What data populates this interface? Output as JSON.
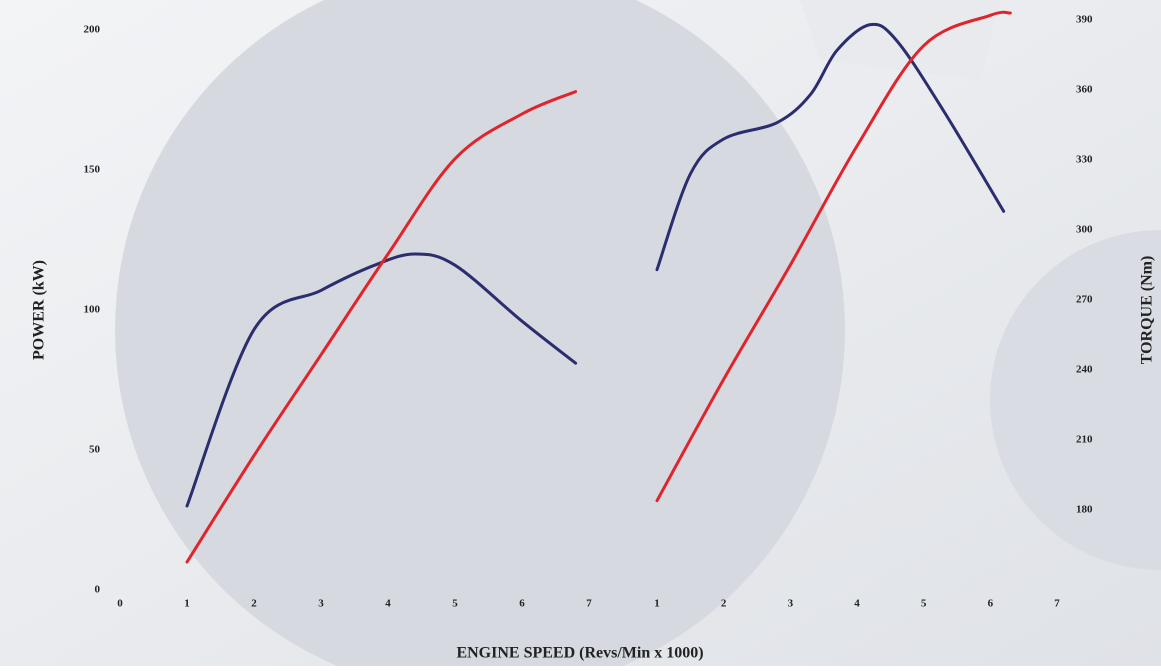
{
  "chart_data": [
    {
      "type": "line",
      "ylabel": "POWER (kW)",
      "xlabel": "ENGINE SPEED (Revs/Min x 1000)",
      "xlim": [
        0,
        7
      ],
      "xticks": [
        0,
        1,
        2,
        3,
        4,
        5,
        6,
        7
      ],
      "ylim": [
        0,
        200
      ],
      "yticks": [
        0,
        50,
        100,
        150,
        200
      ],
      "series": [
        {
          "color": "#2b2d6e",
          "x": [
            1,
            2,
            3,
            3.8,
            4.4,
            5,
            6,
            6.8
          ],
          "values": [
            30,
            93,
            107,
            116,
            120,
            116,
            96,
            81
          ]
        },
        {
          "color": "#e0242b",
          "x": [
            1,
            2,
            3,
            4,
            5,
            6,
            6.8
          ],
          "values": [
            10,
            48,
            84,
            120,
            154,
            170,
            178
          ]
        }
      ]
    },
    {
      "type": "line",
      "ylabel": "TORQUE (Nm)",
      "xlim": [
        1,
        7
      ],
      "xticks": [
        1,
        2,
        3,
        4,
        5,
        6,
        7
      ],
      "ylim": [
        170,
        395
      ],
      "yticks": [
        180,
        210,
        240,
        270,
        300,
        330,
        360,
        390
      ],
      "series": [
        {
          "color": "#2b2d6e",
          "x": [
            1,
            1.5,
            2,
            2.8,
            3.3,
            3.7,
            4.2,
            4.6,
            5.3,
            6.2
          ],
          "values": [
            283,
            324,
            339,
            346,
            358,
            377,
            388,
            381,
            351,
            308
          ]
        },
        {
          "color": "#e0242b",
          "x": [
            1,
            2,
            3,
            4,
            5,
            6,
            6.3
          ],
          "values": [
            184,
            236,
            285,
            336,
            379,
            392,
            393
          ]
        }
      ]
    }
  ]
}
